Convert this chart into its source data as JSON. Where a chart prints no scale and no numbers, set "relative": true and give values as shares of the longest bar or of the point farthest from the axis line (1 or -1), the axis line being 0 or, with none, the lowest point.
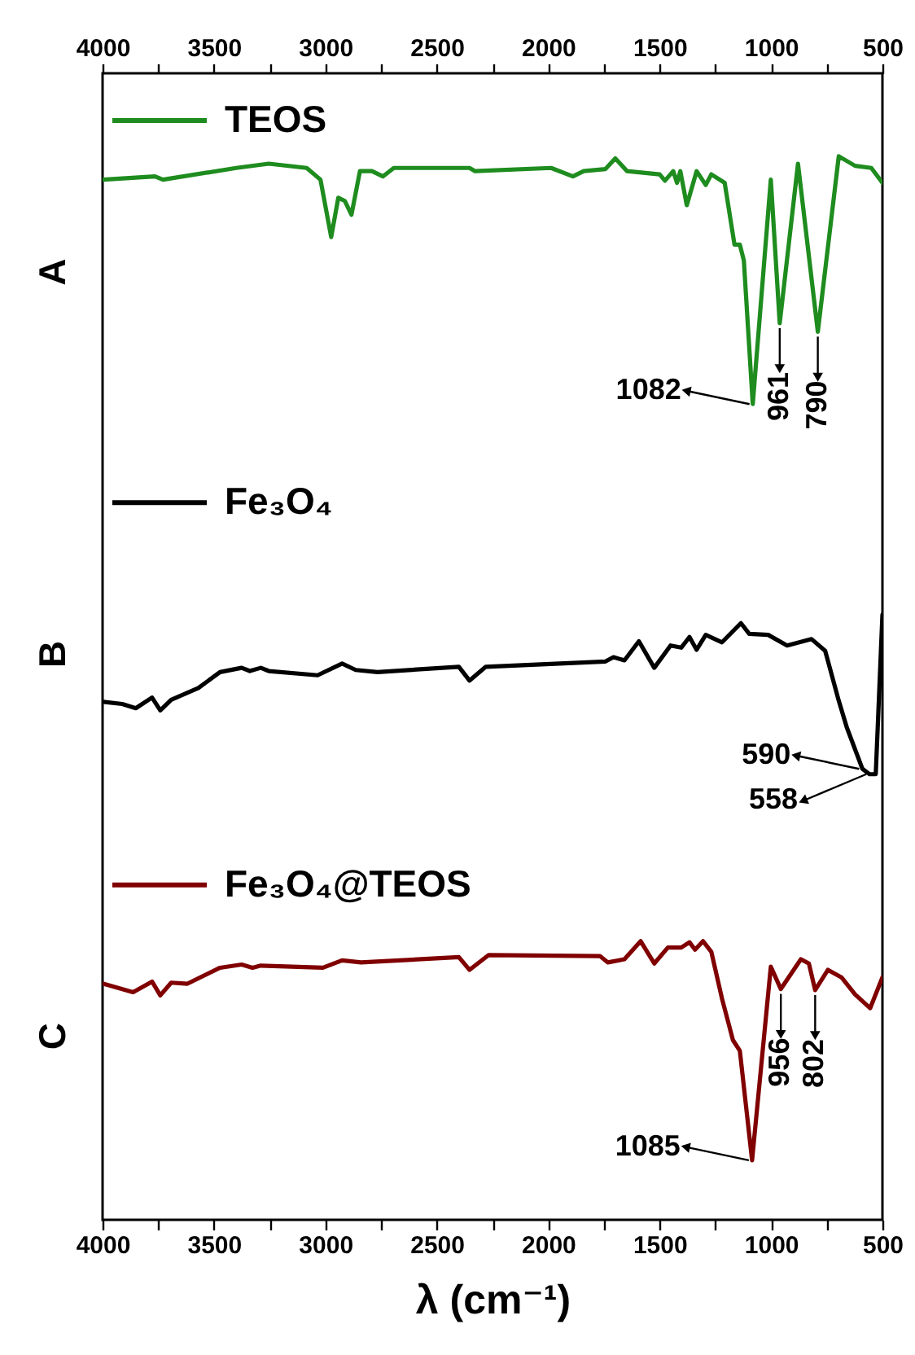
{
  "chart_data": {
    "type": "line",
    "relative": true,
    "legend": "left",
    "line_style": "solid",
    "xlabel": "λ (cm⁻¹)",
    "xlim": [
      4000,
      500
    ],
    "xticks": [
      4000,
      {
        "value": 3750,
        "label": null
      },
      3500,
      {
        "value": 3250,
        "label": null
      },
      3000,
      {
        "value": 2750,
        "label": null
      },
      2500,
      {
        "value": 2250,
        "label": null
      },
      2000,
      {
        "value": 1750,
        "label": null
      },
      1500,
      {
        "value": 1250,
        "label": null
      },
      1000,
      {
        "value": 750,
        "label": null
      },
      500
    ],
    "x2lim": [
      4000,
      500
    ],
    "x2ticks": [
      4000,
      {
        "value": 3750,
        "label": null
      },
      3500,
      {
        "value": 3250,
        "label": null
      },
      3000,
      {
        "value": 2750,
        "label": null
      },
      2500,
      {
        "value": 2250,
        "label": null
      },
      2000,
      {
        "value": 1750,
        "label": null
      },
      1500,
      {
        "value": 1250,
        "label": null
      },
      1000,
      {
        "value": 750,
        "label": null
      },
      500
    ],
    "series": [
      {
        "name": "TEOS",
        "color": "#1e8c1e",
        "x": [
          3997,
          3765,
          3729,
          3400,
          3254,
          3084,
          3022,
          2974,
          2942,
          2913,
          2883,
          2845,
          2791,
          2742,
          2693,
          2353,
          2328,
          1987,
          1889,
          1841,
          1743,
          1699,
          1646,
          1500,
          1476,
          1439,
          1422,
          1407,
          1378,
          1334,
          1293,
          1268,
          1208,
          1164,
          1140,
          1122,
          1082,
          1001,
          961,
          879,
          790,
          696,
          623,
          550,
          500
        ],
        "values": [
          0.978,
          0.981,
          0.978,
          0.989,
          0.993,
          0.989,
          0.978,
          0.924,
          0.961,
          0.958,
          0.945,
          0.986,
          0.986,
          0.981,
          0.989,
          0.989,
          0.986,
          0.989,
          0.981,
          0.986,
          0.988,
          0.998,
          0.986,
          0.983,
          0.977,
          0.986,
          0.975,
          0.986,
          0.954,
          0.986,
          0.973,
          0.983,
          0.975,
          0.917,
          0.917,
          0.902,
          0.767,
          0.978,
          0.843,
          0.993,
          0.835,
          1.0,
          0.991,
          0.989,
          0.975
        ]
      },
      {
        "name": "Fe₃O₄",
        "color": "#000000",
        "x": [
          3997,
          3912,
          3851,
          3778,
          3741,
          3692,
          3570,
          3473,
          3376,
          3339,
          3290,
          3254,
          3035,
          2925,
          2864,
          2766,
          2401,
          2353,
          2280,
          1743,
          1707,
          1658,
          1593,
          1524,
          1451,
          1403,
          1366,
          1334,
          1293,
          1220,
          1135,
          1098,
          1013,
          928,
          818,
          757,
          696,
          660,
          590,
          558,
          530,
          500
        ],
        "values": [
          0.487,
          0.485,
          0.481,
          0.491,
          0.479,
          0.489,
          0.5,
          0.515,
          0.519,
          0.516,
          0.519,
          0.516,
          0.512,
          0.523,
          0.517,
          0.515,
          0.52,
          0.507,
          0.52,
          0.525,
          0.529,
          0.526,
          0.544,
          0.519,
          0.54,
          0.538,
          0.548,
          0.536,
          0.55,
          0.543,
          0.561,
          0.551,
          0.55,
          0.54,
          0.546,
          0.535,
          0.488,
          0.463,
          0.424,
          0.419,
          0.419,
          0.569
        ]
      },
      {
        "name": "Fe₃O₄@TEOS",
        "color": "#800000",
        "x": [
          3997,
          3863,
          3778,
          3741,
          3692,
          3619,
          3473,
          3376,
          3327,
          3290,
          3011,
          2925,
          2840,
          2401,
          2353,
          2267,
          1768,
          1732,
          1658,
          1585,
          1524,
          1463,
          1403,
          1366,
          1341,
          1305,
          1268,
          1220,
          1171,
          1140,
          1085,
          1001,
          956,
          866,
          830,
          802,
          745,
          684,
          623,
          555,
          500
        ],
        "values": [
          0.222,
          0.214,
          0.224,
          0.211,
          0.223,
          0.222,
          0.237,
          0.24,
          0.237,
          0.239,
          0.237,
          0.244,
          0.242,
          0.247,
          0.235,
          0.249,
          0.248,
          0.242,
          0.245,
          0.262,
          0.241,
          0.256,
          0.256,
          0.261,
          0.254,
          0.262,
          0.252,
          0.208,
          0.169,
          0.159,
          0.056,
          0.238,
          0.217,
          0.245,
          0.241,
          0.216,
          0.235,
          0.228,
          0.212,
          0.199,
          0.228
        ]
      }
    ],
    "annotations": [
      "A",
      "B",
      "C",
      {
        "text": "1082",
        "x": 1082,
        "y": 0.767
      },
      {
        "text": "961",
        "x": 961,
        "y": 0.843
      },
      {
        "text": "790",
        "x": 790,
        "y": 0.835
      },
      {
        "text": "590",
        "x": 590,
        "y": 0.424
      },
      {
        "text": "558",
        "x": 558,
        "y": 0.419
      },
      {
        "text": "1085",
        "x": 1085,
        "y": 0.056
      },
      {
        "text": "956",
        "x": 956,
        "y": 0.217
      },
      {
        "text": "802",
        "x": 802,
        "y": 0.216
      }
    ]
  }
}
